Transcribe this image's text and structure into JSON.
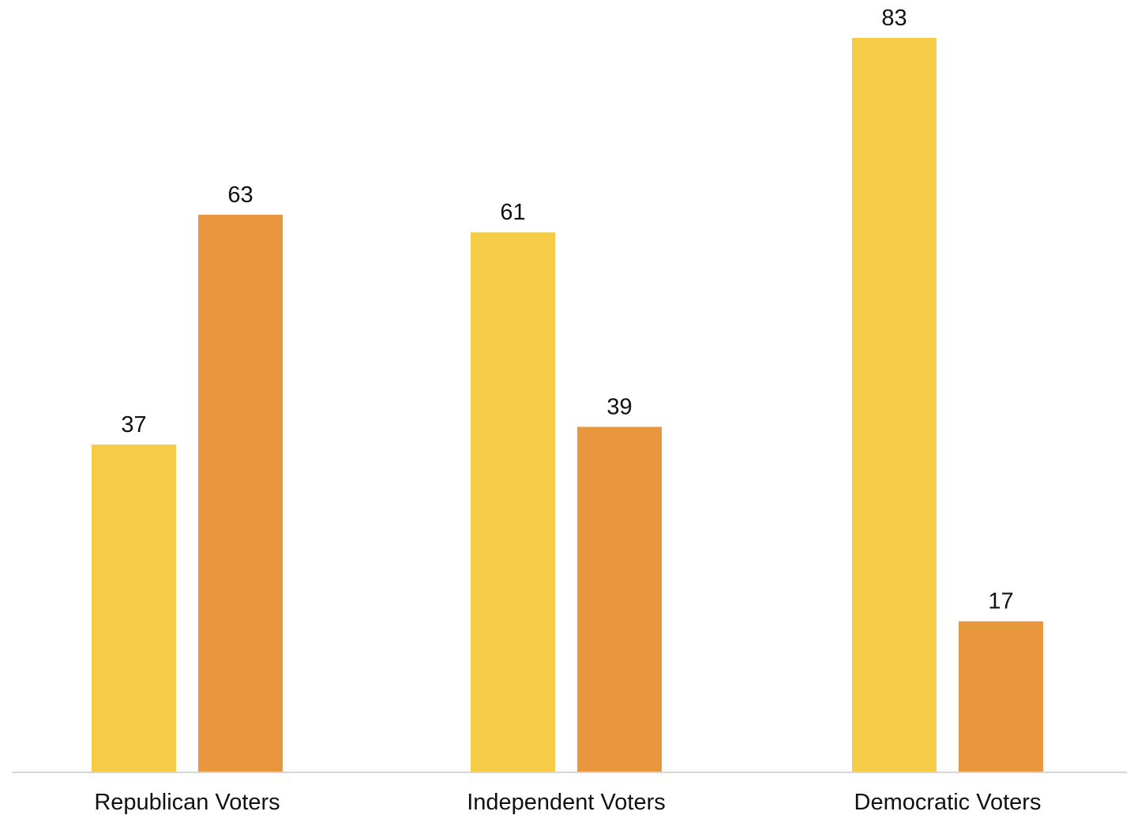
{
  "chart_data": {
    "type": "bar",
    "title": "",
    "xlabel": "",
    "ylabel": "",
    "categories": [
      "Republican Voters",
      "Independent Voters",
      "Democratic Voters"
    ],
    "series": [
      {
        "values": [
          37,
          61,
          83
        ],
        "color": "#F5CB48"
      },
      {
        "values": [
          63,
          39,
          17
        ],
        "color": "#E8973F"
      }
    ],
    "ylim": [
      0,
      83
    ],
    "grid": false,
    "legend": "none",
    "data_labels": true
  },
  "colors": {
    "axis_line": "#D6D6D6",
    "text": "#111111",
    "background": "#FFFFFF"
  }
}
